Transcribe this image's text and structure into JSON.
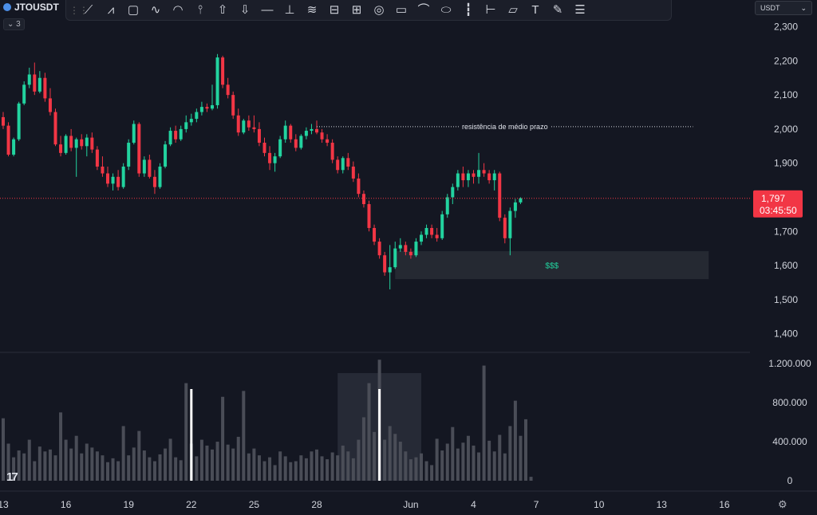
{
  "header": {
    "symbol": "JTOUSDT",
    "indicator_count": "3",
    "currency": "USDT",
    "currency_icon": "chevron-down-icon"
  },
  "toolbar": {
    "tools": [
      {
        "name": "trend-line-icon",
        "glyph": "⟋"
      },
      {
        "name": "path-icon",
        "glyph": "⩘"
      },
      {
        "name": "rectangle-icon",
        "glyph": "▢"
      },
      {
        "name": "brush-icon",
        "glyph": "∿"
      },
      {
        "name": "curve-icon",
        "glyph": "◠"
      },
      {
        "name": "fib-icon",
        "glyph": "⫯"
      },
      {
        "name": "arrow-up-icon",
        "glyph": "⇧"
      },
      {
        "name": "arrow-down-icon",
        "glyph": "⇩"
      },
      {
        "name": "horizontal-ray-icon",
        "glyph": "—"
      },
      {
        "name": "vertical-line-icon",
        "glyph": "⊥"
      },
      {
        "name": "parallel-channel-icon",
        "glyph": "≋"
      },
      {
        "name": "date-range-icon",
        "glyph": "⊟"
      },
      {
        "name": "price-range-icon",
        "glyph": "⊞"
      },
      {
        "name": "target-icon",
        "glyph": "◎"
      },
      {
        "name": "callout-icon",
        "glyph": "▭"
      },
      {
        "name": "polyline-icon",
        "glyph": "⌒"
      },
      {
        "name": "ellipse-icon",
        "glyph": "⬭"
      },
      {
        "name": "candles-icon",
        "glyph": "┇"
      },
      {
        "name": "projection-icon",
        "glyph": "⊢"
      },
      {
        "name": "comment-icon",
        "glyph": "▱"
      },
      {
        "name": "text-icon",
        "glyph": "T"
      },
      {
        "name": "pen-icon",
        "glyph": "✎"
      },
      {
        "name": "menu-icon",
        "glyph": "☰"
      }
    ]
  },
  "footer": {
    "logo_icon": "tradingview-logo-icon",
    "settings_icon": "settings-icon"
  },
  "chart_data": {
    "type": "candlestick",
    "price_axis": {
      "range": [
        1350,
        2320
      ],
      "ticks": [
        1400,
        1500,
        1600,
        1700,
        1800,
        1900,
        2000,
        2100,
        2200,
        2300
      ],
      "tick_labels": [
        "1,400",
        "1,500",
        "1,600",
        "1,700",
        "1,800",
        "1,900",
        "2,000",
        "2,100",
        "2,200",
        "2,300"
      ]
    },
    "volume_axis": {
      "range": [
        0,
        1250000
      ],
      "ticks": [
        0,
        400000,
        800000,
        1200000
      ],
      "tick_labels": [
        "0",
        "400.000",
        "800.000",
        "1.200.000"
      ]
    },
    "time_axis": {
      "tick_labels": [
        "13",
        "16",
        "19",
        "22",
        "25",
        "28",
        "Jun",
        "4",
        "7",
        "10",
        "13",
        "16"
      ],
      "tick_index": [
        0,
        12,
        24,
        36,
        48,
        60,
        78,
        90,
        102,
        114,
        126,
        138
      ]
    },
    "current_price": {
      "value": 1797,
      "label": "1,797",
      "countdown": "03:45:50",
      "color": "#f23645"
    },
    "colors": {
      "up": "#22d39f",
      "down": "#f23645",
      "volume": "#4a4d57",
      "background": "#141722"
    },
    "annotations": [
      {
        "kind": "hline",
        "label": "resistência de médio prazo",
        "price": 2007,
        "x_start_index": 60,
        "x_end_index": 132
      },
      {
        "kind": "zone",
        "label": "$$$",
        "price_low": 1560,
        "price_high": 1642,
        "x_start_index": 75,
        "x_end_index": 135,
        "text_color": "#22d39f"
      }
    ],
    "volume_markers_x_index": [
      36,
      72
    ],
    "volume_highlight": {
      "x_start_index": 64,
      "x_end_index": 80
    },
    "candles": [
      [
        2035,
        2050,
        2000,
        2010
      ],
      [
        2010,
        2020,
        1920,
        1925
      ],
      [
        1925,
        1975,
        1920,
        1970
      ],
      [
        1970,
        2080,
        1965,
        2075
      ],
      [
        2075,
        2140,
        2070,
        2130
      ],
      [
        2130,
        2180,
        2120,
        2160
      ],
      [
        2160,
        2195,
        2100,
        2110
      ],
      [
        2110,
        2170,
        2105,
        2150
      ],
      [
        2150,
        2165,
        2080,
        2090
      ],
      [
        2090,
        2120,
        2040,
        2050
      ],
      [
        2050,
        2060,
        1950,
        1955
      ],
      [
        1955,
        1980,
        1920,
        1930
      ],
      [
        1930,
        1985,
        1925,
        1980
      ],
      [
        1980,
        2000,
        1935,
        1945
      ],
      [
        1945,
        1975,
        1860,
        1970
      ],
      [
        1970,
        1985,
        1940,
        1950
      ],
      [
        1950,
        1985,
        1920,
        1975
      ],
      [
        1975,
        1990,
        1930,
        1940
      ],
      [
        1940,
        1950,
        1880,
        1890
      ],
      [
        1890,
        1920,
        1860,
        1870
      ],
      [
        1870,
        1890,
        1830,
        1840
      ],
      [
        1840,
        1870,
        1820,
        1860
      ],
      [
        1860,
        1880,
        1820,
        1830
      ],
      [
        1830,
        1900,
        1825,
        1890
      ],
      [
        1890,
        1970,
        1880,
        1960
      ],
      [
        1960,
        2025,
        1955,
        2015
      ],
      [
        2015,
        2020,
        1860,
        1870
      ],
      [
        1870,
        1920,
        1860,
        1910
      ],
      [
        1910,
        1925,
        1855,
        1860
      ],
      [
        1860,
        1880,
        1810,
        1830
      ],
      [
        1830,
        1900,
        1825,
        1890
      ],
      [
        1890,
        1965,
        1885,
        1955
      ],
      [
        1955,
        2005,
        1950,
        1995
      ],
      [
        1995,
        2010,
        1960,
        1970
      ],
      [
        1970,
        2010,
        1965,
        2000
      ],
      [
        2000,
        2040,
        1990,
        2020
      ],
      [
        2020,
        2045,
        2010,
        2030
      ],
      [
        2030,
        2060,
        2020,
        2050
      ],
      [
        2050,
        2080,
        2040,
        2065
      ],
      [
        2065,
        2075,
        2050,
        2060
      ],
      [
        2060,
        2130,
        2055,
        2070
      ],
      [
        2070,
        2220,
        2060,
        2210
      ],
      [
        2210,
        2215,
        2120,
        2130
      ],
      [
        2130,
        2150,
        2090,
        2100
      ],
      [
        2100,
        2110,
        2030,
        2040
      ],
      [
        2040,
        2060,
        1980,
        1990
      ],
      [
        1990,
        2030,
        1985,
        2025
      ],
      [
        2025,
        2040,
        1995,
        2005
      ],
      [
        2005,
        2040,
        1990,
        2000
      ],
      [
        2000,
        2020,
        1950,
        1960
      ],
      [
        1960,
        1975,
        1920,
        1930
      ],
      [
        1930,
        1950,
        1880,
        1900
      ],
      [
        1900,
        1930,
        1875,
        1920
      ],
      [
        1920,
        1980,
        1915,
        1970
      ],
      [
        1970,
        2025,
        1960,
        2010
      ],
      [
        2010,
        2015,
        1960,
        1970
      ],
      [
        1970,
        1985,
        1935,
        1945
      ],
      [
        1945,
        1985,
        1940,
        1980
      ],
      [
        1980,
        2005,
        1970,
        1995
      ],
      [
        1995,
        2015,
        1985,
        2000
      ],
      [
        2000,
        2025,
        1985,
        1990
      ],
      [
        1990,
        2000,
        1960,
        1970
      ],
      [
        1970,
        1985,
        1950,
        1960
      ],
      [
        1960,
        1970,
        1900,
        1910
      ],
      [
        1910,
        1920,
        1870,
        1880
      ],
      [
        1880,
        1920,
        1870,
        1915
      ],
      [
        1915,
        1930,
        1880,
        1890
      ],
      [
        1890,
        1905,
        1845,
        1855
      ],
      [
        1855,
        1870,
        1800,
        1810
      ],
      [
        1810,
        1820,
        1770,
        1780
      ],
      [
        1780,
        1790,
        1700,
        1710
      ],
      [
        1710,
        1720,
        1660,
        1670
      ],
      [
        1670,
        1680,
        1620,
        1630
      ],
      [
        1630,
        1640,
        1570,
        1580
      ],
      [
        1580,
        1660,
        1530,
        1595
      ],
      [
        1595,
        1670,
        1590,
        1650
      ],
      [
        1650,
        1680,
        1640,
        1660
      ],
      [
        1660,
        1670,
        1630,
        1640
      ],
      [
        1640,
        1650,
        1620,
        1630
      ],
      [
        1630,
        1680,
        1625,
        1670
      ],
      [
        1670,
        1700,
        1660,
        1690
      ],
      [
        1690,
        1720,
        1680,
        1710
      ],
      [
        1710,
        1720,
        1680,
        1690
      ],
      [
        1690,
        1710,
        1670,
        1680
      ],
      [
        1680,
        1760,
        1675,
        1750
      ],
      [
        1750,
        1810,
        1740,
        1800
      ],
      [
        1800,
        1840,
        1780,
        1830
      ],
      [
        1830,
        1880,
        1820,
        1870
      ],
      [
        1870,
        1890,
        1830,
        1850
      ],
      [
        1850,
        1880,
        1830,
        1870
      ],
      [
        1870,
        1880,
        1840,
        1860
      ],
      [
        1860,
        1930,
        1840,
        1880
      ],
      [
        1880,
        1900,
        1860,
        1870
      ],
      [
        1870,
        1880,
        1840,
        1850
      ],
      [
        1850,
        1880,
        1820,
        1870
      ],
      [
        1870,
        1875,
        1730,
        1740
      ],
      [
        1740,
        1750,
        1665,
        1680
      ],
      [
        1680,
        1770,
        1630,
        1760
      ],
      [
        1760,
        1795,
        1740,
        1785
      ],
      [
        1785,
        1800,
        1780,
        1797
      ]
    ],
    "volumes": [
      640000,
      380000,
      240000,
      310000,
      280000,
      420000,
      200000,
      350000,
      300000,
      320000,
      260000,
      700000,
      420000,
      330000,
      460000,
      280000,
      380000,
      340000,
      300000,
      260000,
      190000,
      230000,
      200000,
      560000,
      260000,
      340000,
      510000,
      310000,
      240000,
      200000,
      270000,
      330000,
      430000,
      240000,
      210000,
      1000000,
      380000,
      250000,
      420000,
      360000,
      320000,
      400000,
      860000,
      370000,
      330000,
      450000,
      920000,
      280000,
      330000,
      260000,
      200000,
      240000,
      160000,
      300000,
      250000,
      190000,
      200000,
      260000,
      230000,
      300000,
      320000,
      250000,
      220000,
      290000,
      260000,
      360000,
      300000,
      230000,
      420000,
      650000,
      1000000,
      500000,
      1240000,
      420000,
      560000,
      480000,
      400000,
      300000,
      220000,
      240000,
      280000,
      200000,
      160000,
      430000,
      310000,
      380000,
      550000,
      330000,
      390000,
      460000,
      360000,
      290000,
      1180000,
      410000,
      300000,
      470000,
      280000,
      560000,
      820000,
      460000,
      630000,
      40000
    ]
  }
}
